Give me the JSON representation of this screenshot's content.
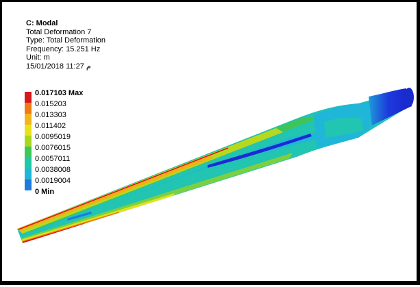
{
  "info": {
    "analysis": "C: Modal",
    "result": "Total Deformation 7",
    "type": "Type: Total Deformation",
    "frequency": "Frequency: 15.251 Hz",
    "unit": "Unit: m",
    "timestamp": "15/01/2018 11:27 م"
  },
  "legend": {
    "entries": [
      {
        "label": "0.017103 Max",
        "color": "#d7191c",
        "bold": true
      },
      {
        "label": "0.015203",
        "color": "#f07a14"
      },
      {
        "label": "0.013303",
        "color": "#f2b61c"
      },
      {
        "label": "0.011402",
        "color": "#e8e21c"
      },
      {
        "label": "0.0095019",
        "color": "#a8d81e"
      },
      {
        "label": "0.0076015",
        "color": "#3ec85a"
      },
      {
        "label": "0.0057011",
        "color": "#1fc9a7"
      },
      {
        "label": "0.0038008",
        "color": "#1fb6d8"
      },
      {
        "label": "0.0019004",
        "color": "#1f7ae0"
      },
      {
        "label": "0 Min",
        "color": "#1c2ad6",
        "bold": true
      }
    ]
  }
}
